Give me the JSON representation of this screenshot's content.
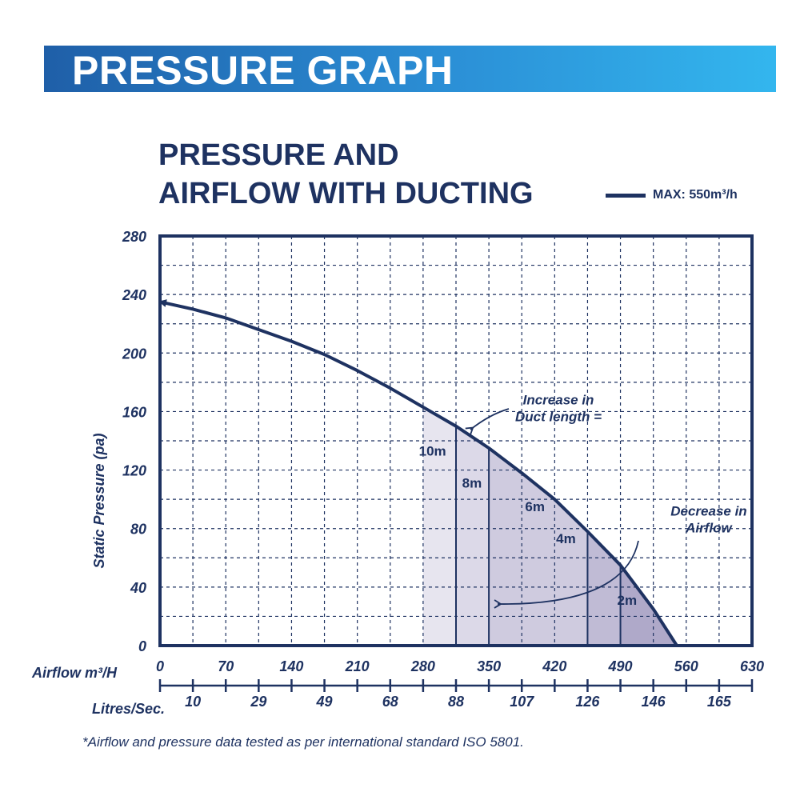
{
  "header": {
    "title": "PRESSURE GRAPH"
  },
  "chart_data": {
    "type": "area",
    "title_line1": "PRESSURE AND",
    "title_line2": "AIRFLOW WITH DUCTING",
    "legend": {
      "label": "MAX: 550m³/h",
      "placement": "top-right"
    },
    "ylabel": "Static Pressure (pa)",
    "xlabel_primary": "Airflow m³/H",
    "xlabel_secondary": "Litres/Sec.",
    "xlim": [
      0,
      630
    ],
    "ylim": [
      0,
      280
    ],
    "grid": true,
    "y_ticks": [
      "0",
      "40",
      "80",
      "120",
      "160",
      "200",
      "240",
      "280"
    ],
    "x_ticks": [
      "0",
      "70",
      "140",
      "210",
      "280",
      "350",
      "420",
      "490",
      "560",
      "630"
    ],
    "litres_ticks": [
      {
        "label": "10",
        "airflow": 35
      },
      {
        "label": "29",
        "airflow": 105
      },
      {
        "label": "49",
        "airflow": 175
      },
      {
        "label": "68",
        "airflow": 245
      },
      {
        "label": "88",
        "airflow": 315
      },
      {
        "label": "107",
        "airflow": 385
      },
      {
        "label": "126",
        "airflow": 455
      },
      {
        "label": "146",
        "airflow": 525
      },
      {
        "label": "165",
        "airflow": 595
      }
    ],
    "series": [
      {
        "name": "MAX: 550m³/h",
        "x": [
          0,
          35,
          70,
          105,
          140,
          175,
          210,
          245,
          280,
          315,
          350,
          385,
          420,
          455,
          490,
          525,
          550
        ],
        "y": [
          235,
          230,
          224,
          216,
          208,
          199,
          188,
          176,
          163,
          150,
          135,
          118,
          100,
          78,
          55,
          25,
          0
        ]
      }
    ],
    "bands": [
      {
        "label": "10m",
        "x_start": 280,
        "x_end": 315,
        "label_x": 290,
        "label_y": 130
      },
      {
        "label": "8m",
        "x_start": 315,
        "x_end": 350,
        "label_x": 332,
        "label_y": 108
      },
      {
        "label": "6m",
        "x_start": 350,
        "x_end": 455,
        "label_x": 399,
        "label_y": 92
      },
      {
        "label": "4m",
        "x_start": 455,
        "x_end": 490,
        "label_x": 432,
        "label_y": 70
      },
      {
        "label": "2m",
        "x_start": 490,
        "x_end": 550,
        "label_x": 497,
        "label_y": 28
      }
    ],
    "annotations": [
      {
        "lines": [
          "Increase in",
          "Duct length ="
        ],
        "x": 424,
        "y": 165
      },
      {
        "lines": [
          "Decrease in",
          "Airflow"
        ],
        "x": 584,
        "y": 89
      }
    ]
  },
  "footnote": "*Airflow and pressure data tested as per international standard ISO 5801."
}
